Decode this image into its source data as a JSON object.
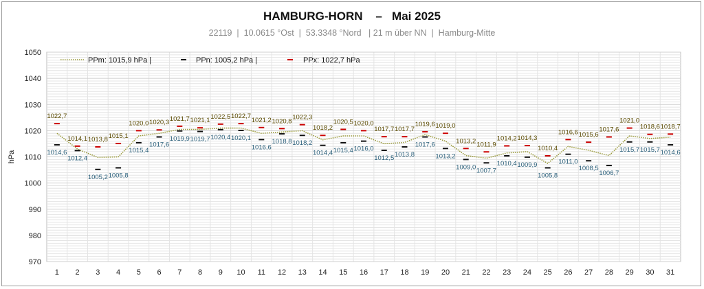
{
  "header": {
    "title": "HAMBURG-HORN    –   Mai 2025",
    "subtitle": "22119  |  10.0615 °Ost  |  53.3348 °Nord   | 21 m über NN  |  Hamburg-Mitte"
  },
  "legend": {
    "mean": "PPm: 1015,9 hPa   |",
    "min": "PPn: 1005,2 hPa   |",
    "max": "PPx: 1022,7 hPa"
  },
  "colors": {
    "mean_line": "#9a9a3a",
    "min_marker": "#111111",
    "max_marker": "#cc0000",
    "min_label": "#2a5f7a",
    "max_label": "#5a4a00",
    "grid": "#cfcfcf"
  },
  "chart_data": {
    "type": "line",
    "ylabel": "hPa",
    "ylim": [
      970,
      1050
    ],
    "yticks": [
      970,
      980,
      990,
      1000,
      1010,
      1020,
      1030,
      1040,
      1050
    ],
    "x": [
      1,
      2,
      3,
      4,
      5,
      6,
      7,
      8,
      9,
      10,
      11,
      12,
      13,
      14,
      15,
      16,
      17,
      18,
      19,
      20,
      21,
      22,
      23,
      24,
      25,
      26,
      27,
      28,
      29,
      30,
      31
    ],
    "series": [
      {
        "name": "PPx",
        "values": [
          1022.7,
          1014.1,
          1013.8,
          1015.1,
          1020.0,
          1020.3,
          1021.7,
          1021.1,
          1022.5,
          1022.7,
          1021.2,
          1020.8,
          1022.3,
          1018.2,
          1020.5,
          1020.0,
          1017.7,
          1017.7,
          1019.6,
          1019.0,
          1013.2,
          1011.9,
          1014.2,
          1014.3,
          1010.4,
          1016.6,
          1015.6,
          1017.6,
          1021.0,
          1018.6,
          1018.7
        ],
        "labels": [
          "1022,7",
          "1014,1",
          "1013,8",
          "1015,1",
          "1020,0",
          "1020,3",
          "1021,7",
          "1021,1",
          "1022,5",
          "1022,7",
          "1021,2",
          "1020,8",
          "1022,3",
          "1018,2",
          "1020,5",
          "1020,0",
          "1017,7",
          "1017,7",
          "1019,6",
          "1019,0",
          "1013,2",
          "1011,9",
          "1014,2",
          "1014,3",
          "1010,4",
          "1016,6",
          "1015,6",
          "1017,6",
          "1021,0",
          "1018,6",
          "1018,7"
        ]
      },
      {
        "name": "PPn",
        "values": [
          1014.6,
          1012.4,
          1005.2,
          1005.8,
          1015.4,
          1017.6,
          1019.9,
          1019.7,
          1020.4,
          1020.1,
          1016.6,
          1018.8,
          1018.2,
          1014.4,
          1015.4,
          1016.0,
          1012.5,
          1013.8,
          1017.6,
          1013.2,
          1009.0,
          1007.7,
          1010.4,
          1009.9,
          1005.8,
          1011.0,
          1008.5,
          1006.7,
          1015.7,
          1015.7,
          1014.6
        ],
        "labels": [
          "1014,6",
          "1012,4",
          "1005,2",
          "1005,8",
          "1015,4",
          "1017,6",
          "1019,9",
          "1019,7",
          "1020,4",
          "1020,1",
          "1016,6",
          "1018,8",
          "1018,2",
          "1014,4",
          "1015,4",
          "1016,0",
          "1012,5",
          "1013,8",
          "1017,6",
          "1013,2",
          "1009,0",
          "1007,7",
          "1010,4",
          "1009,9",
          "1005,8",
          "1011,0",
          "1008,5",
          "1006,7",
          "1015,7",
          "1015,7",
          "1014,6"
        ]
      },
      {
        "name": "PPm",
        "values": [
          1019.0,
          1013.0,
          1009.8,
          1010.0,
          1018.0,
          1019.0,
          1020.5,
          1020.5,
          1021.0,
          1021.0,
          1019.0,
          1019.5,
          1020.0,
          1016.5,
          1018.0,
          1018.0,
          1015.0,
          1015.5,
          1018.5,
          1016.0,
          1010.5,
          1009.5,
          1011.5,
          1012.0,
          1007.5,
          1014.0,
          1012.5,
          1010.5,
          1018.0,
          1017.0,
          1017.5
        ]
      }
    ],
    "grid": true,
    "legend_position": "top-left"
  }
}
